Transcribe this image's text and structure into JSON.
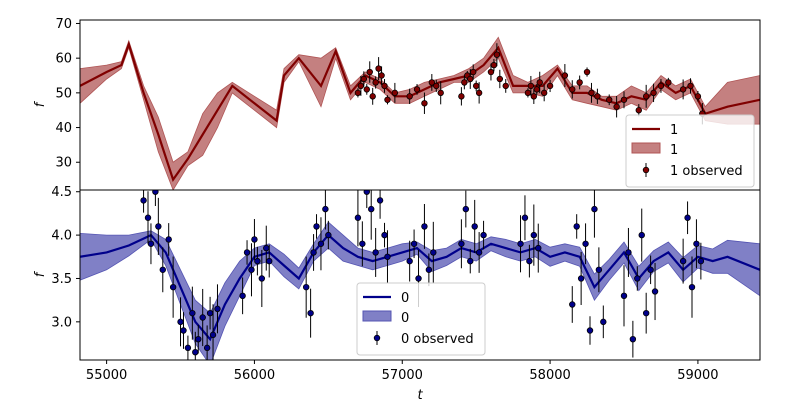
{
  "chart_data": [
    {
      "type": "line",
      "panel": "top",
      "xlim": [
        54820,
        59420
      ],
      "ylim": [
        22,
        71
      ],
      "yticks": [
        30,
        40,
        50,
        60,
        70
      ],
      "xticks": [
        55000,
        56000,
        57000,
        58000,
        59000
      ],
      "ylabel": "f",
      "xlabel": "",
      "legend_position": "lower-right",
      "series": [
        {
          "name": "1",
          "kind": "model-mean",
          "color": "#800000",
          "x": [
            54820,
            55000,
            55100,
            55150,
            55250,
            55350,
            55450,
            55550,
            55650,
            55750,
            55850,
            56000,
            56150,
            56200,
            56300,
            56450,
            56550,
            56650,
            56750,
            56850,
            56950,
            57050,
            57150,
            57250,
            57350,
            57450,
            57550,
            57650,
            57750,
            57850,
            57950,
            58050,
            58150,
            58250,
            58350,
            58450,
            58550,
            58650,
            58750,
            58850,
            58950,
            59050,
            59200,
            59420
          ],
          "y": [
            52,
            56,
            58,
            64,
            50,
            38,
            25,
            31,
            38,
            45,
            52,
            47,
            42,
            55,
            60,
            52,
            62,
            50,
            55,
            53,
            49,
            49,
            51,
            53,
            54,
            55,
            58,
            63,
            52,
            52,
            52,
            57,
            50,
            50,
            48,
            47,
            49,
            48,
            53,
            50,
            52,
            44,
            46,
            48
          ]
        },
        {
          "name": "1",
          "kind": "confidence-band",
          "color": "#b05555",
          "x": [
            54820,
            55000,
            55100,
            55150,
            55250,
            55350,
            55450,
            55550,
            55650,
            55750,
            55850,
            56000,
            56150,
            56200,
            56300,
            56450,
            56550,
            56650,
            56750,
            56850,
            56950,
            57050,
            57150,
            57250,
            57350,
            57450,
            57550,
            57650,
            57750,
            57850,
            57950,
            58050,
            58150,
            58250,
            58350,
            58450,
            58550,
            58650,
            58750,
            58850,
            58950,
            59050,
            59200,
            59420
          ],
          "upper": [
            57,
            58,
            59,
            65,
            52,
            43,
            30,
            33,
            44,
            50,
            53,
            49,
            45,
            57,
            61,
            60,
            63,
            52,
            56,
            54,
            50,
            51,
            53,
            54,
            55,
            57,
            60,
            66,
            55,
            53,
            55,
            58,
            52,
            52,
            49,
            49,
            52,
            50,
            55,
            52,
            54,
            46,
            53,
            55
          ],
          "lower": [
            47,
            54,
            57,
            63,
            48,
            33,
            22,
            29,
            32,
            40,
            50,
            45,
            40,
            53,
            59,
            46,
            60,
            48,
            53,
            51,
            47,
            47,
            49,
            51,
            53,
            53,
            56,
            60,
            50,
            50,
            49,
            55,
            48,
            47,
            46,
            45,
            47,
            45,
            51,
            48,
            50,
            42,
            41,
            41
          ]
        },
        {
          "name": "1 observed",
          "kind": "observations",
          "color": "#800000",
          "x": [
            56700,
            56720,
            56740,
            56760,
            56780,
            56800,
            56820,
            56840,
            56860,
            56880,
            56900,
            56950,
            57050,
            57100,
            57150,
            57200,
            57230,
            57260,
            57400,
            57420,
            57440,
            57460,
            57480,
            57500,
            57520,
            57600,
            57620,
            57640,
            57660,
            57700,
            57850,
            57870,
            57890,
            57910,
            57930,
            57960,
            58000,
            58100,
            58150,
            58200,
            58250,
            58280,
            58320,
            58400,
            58450,
            58500,
            58600,
            58650,
            58700,
            58750,
            58800,
            58900,
            58950,
            59000,
            59030
          ],
          "y": [
            50,
            52,
            54,
            51,
            56,
            49,
            53,
            57,
            55,
            52,
            48,
            50,
            49,
            51,
            47,
            53,
            52,
            50,
            49,
            53,
            55,
            54,
            56,
            52,
            50,
            56,
            58,
            61,
            54,
            52,
            50,
            52,
            49,
            51,
            53,
            50,
            52,
            55,
            51,
            53,
            56,
            50,
            49,
            48,
            46,
            48,
            45,
            49,
            50,
            52,
            53,
            51,
            52,
            49,
            44
          ]
        }
      ]
    },
    {
      "type": "line",
      "panel": "bottom",
      "xlim": [
        54820,
        59420
      ],
      "ylim": [
        2.56,
        4.52
      ],
      "yticks": [
        3.0,
        3.5,
        4.0,
        4.5
      ],
      "xticks": [
        55000,
        56000,
        57000,
        58000,
        59000
      ],
      "ylabel": "f",
      "xlabel": "t",
      "legend_position": "lower-center",
      "series": [
        {
          "name": "0",
          "kind": "model-mean",
          "color": "#00008b",
          "x": [
            54820,
            55000,
            55150,
            55300,
            55400,
            55500,
            55600,
            55700,
            55800,
            55900,
            56000,
            56100,
            56200,
            56300,
            56400,
            56500,
            56600,
            56700,
            56800,
            56900,
            57000,
            57100,
            57200,
            57300,
            57400,
            57500,
            57600,
            57700,
            57800,
            57900,
            58000,
            58100,
            58200,
            58300,
            58400,
            58500,
            58600,
            58700,
            58800,
            58900,
            59000,
            59100,
            59200,
            59420
          ],
          "y": [
            3.75,
            3.8,
            3.88,
            4.0,
            3.8,
            3.4,
            3.0,
            2.8,
            3.2,
            3.5,
            3.75,
            3.8,
            3.65,
            3.5,
            3.8,
            4.0,
            3.85,
            3.75,
            3.7,
            3.75,
            3.8,
            3.85,
            3.7,
            3.75,
            3.85,
            3.8,
            3.9,
            3.85,
            3.8,
            3.85,
            3.75,
            3.8,
            3.75,
            3.4,
            3.6,
            3.8,
            3.5,
            3.7,
            3.8,
            3.6,
            3.75,
            3.7,
            3.75,
            3.6
          ]
        },
        {
          "name": "0",
          "kind": "confidence-band",
          "color": "#5555b3",
          "x": [
            54820,
            55000,
            55150,
            55300,
            55400,
            55500,
            55600,
            55700,
            55800,
            55900,
            56000,
            56100,
            56200,
            56300,
            56400,
            56500,
            56600,
            56700,
            56800,
            56900,
            57000,
            57100,
            57200,
            57300,
            57400,
            57500,
            57600,
            57700,
            57800,
            57900,
            58000,
            58100,
            58200,
            58300,
            58400,
            58500,
            58600,
            58700,
            58800,
            58900,
            59000,
            59100,
            59200,
            59420
          ],
          "upper": [
            4.02,
            4.0,
            4.0,
            4.05,
            3.95,
            3.6,
            3.25,
            3.1,
            3.45,
            3.7,
            3.85,
            3.9,
            3.78,
            3.62,
            3.9,
            4.15,
            4.0,
            3.85,
            3.8,
            3.85,
            3.9,
            3.92,
            3.82,
            3.85,
            3.95,
            3.9,
            3.98,
            3.95,
            3.9,
            3.95,
            3.86,
            3.9,
            3.86,
            3.55,
            3.72,
            3.92,
            3.64,
            3.82,
            3.92,
            3.74,
            3.88,
            3.84,
            3.94,
            3.9
          ],
          "lower": [
            3.48,
            3.6,
            3.76,
            3.95,
            3.65,
            3.2,
            2.75,
            2.5,
            2.95,
            3.3,
            3.65,
            3.7,
            3.52,
            3.38,
            3.7,
            3.85,
            3.7,
            3.65,
            3.6,
            3.65,
            3.7,
            3.78,
            3.58,
            3.65,
            3.75,
            3.7,
            3.82,
            3.75,
            3.7,
            3.75,
            3.64,
            3.7,
            3.64,
            3.25,
            3.48,
            3.68,
            3.36,
            3.58,
            3.68,
            3.46,
            3.62,
            3.56,
            3.56,
            3.3
          ]
        },
        {
          "name": "0 observed",
          "kind": "observations",
          "color": "#00008b",
          "x": [
            55250,
            55280,
            55300,
            55330,
            55350,
            55380,
            55420,
            55450,
            55500,
            55520,
            55550,
            55580,
            55600,
            55620,
            55650,
            55680,
            55700,
            55720,
            55750,
            55920,
            55950,
            55980,
            56000,
            56020,
            56050,
            56080,
            56100,
            56350,
            56380,
            56400,
            56420,
            56450,
            56480,
            56500,
            56700,
            56730,
            56760,
            56790,
            56820,
            56850,
            56880,
            56900,
            57050,
            57080,
            57110,
            57150,
            57180,
            57210,
            57400,
            57430,
            57460,
            57490,
            57520,
            57550,
            57800,
            57830,
            57860,
            57890,
            57920,
            58150,
            58180,
            58210,
            58240,
            58270,
            58300,
            58330,
            58360,
            58500,
            58530,
            58560,
            58590,
            58620,
            58650,
            58680,
            58710,
            58900,
            58930,
            58960,
            58990,
            59020
          ],
          "y": [
            4.4,
            4.2,
            3.9,
            4.5,
            4.1,
            3.6,
            3.95,
            3.4,
            3.0,
            2.9,
            2.7,
            3.1,
            2.65,
            2.8,
            3.05,
            2.7,
            3.1,
            2.85,
            3.15,
            3.3,
            3.8,
            3.6,
            3.95,
            3.7,
            3.5,
            3.85,
            3.7,
            3.4,
            3.1,
            3.8,
            4.1,
            3.9,
            4.3,
            4.0,
            4.2,
            3.9,
            4.5,
            4.3,
            3.8,
            4.4,
            4.0,
            3.75,
            3.7,
            3.9,
            3.5,
            4.1,
            3.6,
            3.8,
            3.9,
            4.3,
            3.7,
            4.1,
            3.8,
            4.0,
            3.9,
            4.2,
            3.7,
            4.0,
            3.85,
            3.2,
            4.1,
            3.5,
            3.9,
            2.9,
            4.3,
            3.6,
            3.0,
            3.3,
            3.8,
            2.8,
            3.5,
            4.0,
            3.1,
            3.6,
            3.35,
            3.7,
            4.2,
            3.4,
            3.9,
            3.7
          ]
        }
      ]
    }
  ]
}
